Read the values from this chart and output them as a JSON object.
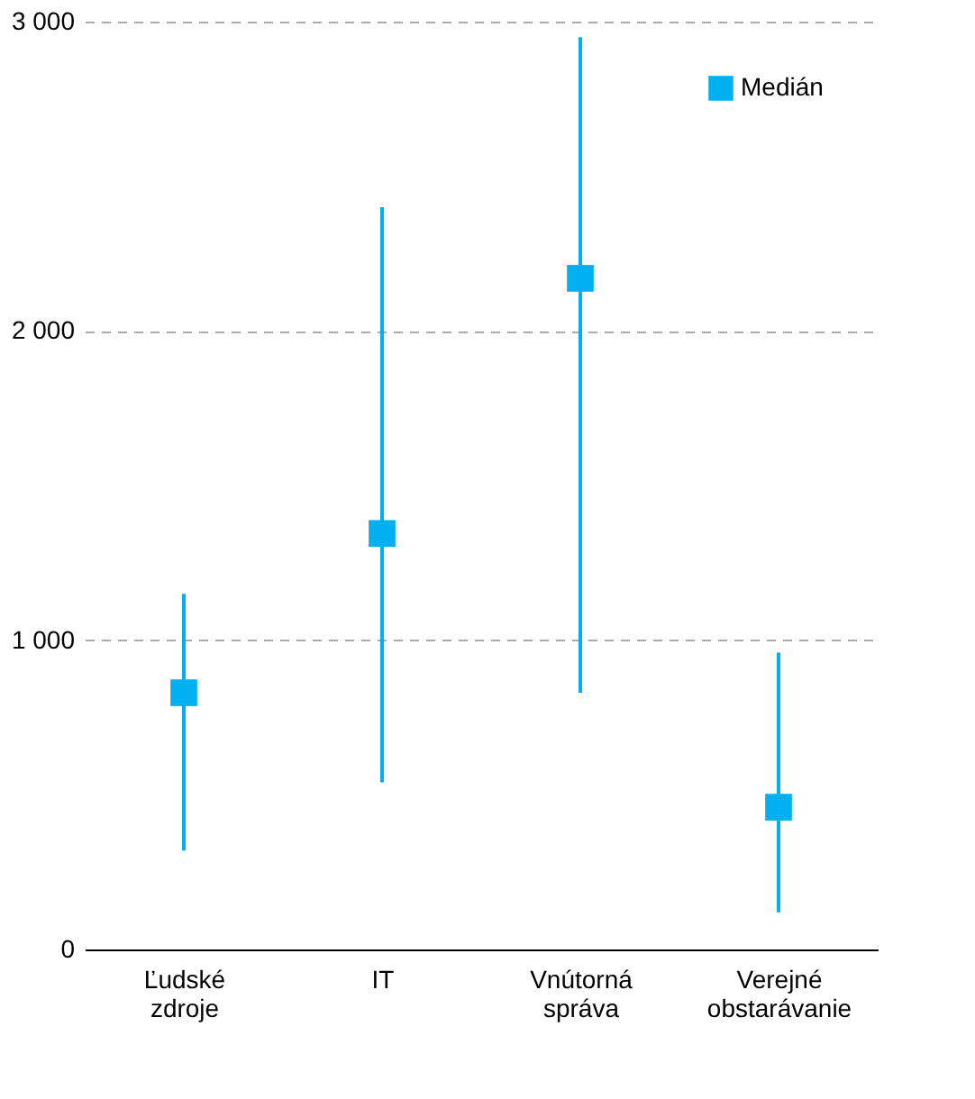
{
  "chart_data": {
    "type": "scatter",
    "categories": [
      "Ľudské zdroje",
      "IT",
      "Vnútorná správa",
      "Verejné obstarávanie"
    ],
    "series": [
      {
        "name": "Medián",
        "color": "#00b0f0",
        "values": [
          830,
          1345,
          2170,
          460
        ],
        "errors": [
          [
            320,
            1150
          ],
          [
            540,
            2400
          ],
          [
            830,
            2950
          ],
          [
            120,
            960
          ]
        ]
      }
    ],
    "ylim": [
      0,
      3000
    ],
    "yticks": [
      0,
      {
        "value": 1000,
        "label": "1 000"
      },
      {
        "value": 2000,
        "label": "2 000"
      },
      {
        "value": 3000,
        "label": "3 000"
      }
    ],
    "grid": "y",
    "legend": "top right",
    "marker": "square"
  }
}
